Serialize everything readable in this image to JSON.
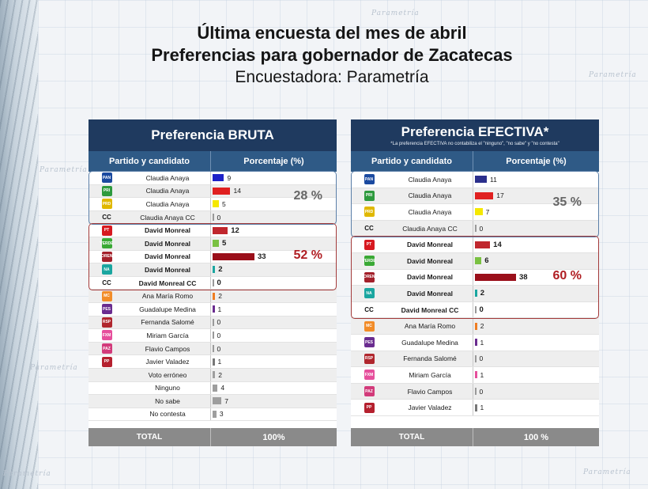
{
  "title_line1": "Última encuesta del mes de abril",
  "title_line2": "Preferencias para gobernador de Zacatecas",
  "title_line3": "Encuestadora: Parametría",
  "watermark": "Parametría",
  "colors": {
    "header_dark": "#1f3a5f",
    "header_mid": "#2f5a86",
    "group1_border": "#5b7fa8",
    "group2_border": "#a33a3a",
    "group1_pct": "#666666",
    "group2_pct": "#b01e23"
  },
  "chart_data": [
    {
      "type": "bar",
      "title": "Preferencia BRUTA",
      "note": "",
      "col_headers": [
        "Partido y candidato",
        "Porcentaje (%)"
      ],
      "total_label": "TOTAL",
      "total_value": "100%",
      "groups": [
        {
          "label": "28 %",
          "start": 0,
          "end": 3
        },
        {
          "label": "52 %",
          "start": 4,
          "end": 8
        }
      ],
      "rows": [
        {
          "party": "PAN",
          "icon": "pan-logo-icon",
          "logo_color": "#1b4aa0",
          "name": "Claudia Anaya",
          "value": 9,
          "color": "#1e22c8",
          "bold": false
        },
        {
          "party": "PRI",
          "icon": "pri-logo-icon",
          "logo_color": "#2e9a3e",
          "name": "Claudia Anaya",
          "value": 14,
          "color": "#e02020",
          "bold": false
        },
        {
          "party": "PRD",
          "icon": "prd-logo-icon",
          "logo_color": "#e0b800",
          "name": "Claudia Anaya",
          "value": 5,
          "color": "#f5e800",
          "bold": false
        },
        {
          "party": "CC",
          "icon": "",
          "logo_color": "",
          "name": "Claudia Anaya CC",
          "value": 0,
          "color": "#999999",
          "bold": false
        },
        {
          "party": "PT",
          "icon": "pt-logo-icon",
          "logo_color": "#d71920",
          "name": "David Monreal",
          "value": 12,
          "color": "#c0262d",
          "bold": true
        },
        {
          "party": "VERDE",
          "icon": "verde-logo-icon",
          "logo_color": "#3aa935",
          "name": "David Monreal",
          "value": 5,
          "color": "#7ac142",
          "bold": true
        },
        {
          "party": "MORENA",
          "icon": "morena-logo-icon",
          "logo_color": "#a3202a",
          "name": "David Monreal",
          "value": 33,
          "color": "#9a0f1a",
          "bold": true
        },
        {
          "party": "NA",
          "icon": "nueva-alianza-logo-icon",
          "logo_color": "#1aa6a0",
          "name": "David Monreal",
          "value": 2,
          "color": "#1aa6a0",
          "bold": true
        },
        {
          "party": "CC",
          "icon": "",
          "logo_color": "",
          "name": "David Monreal CC",
          "value": 0,
          "color": "#999999",
          "bold": true
        },
        {
          "party": "MC",
          "icon": "mc-logo-icon",
          "logo_color": "#f28c28",
          "name": "Ana María Romo",
          "value": 2,
          "color": "#ef7d22",
          "bold": false
        },
        {
          "party": "PES",
          "icon": "pes-logo-icon",
          "logo_color": "#6a2c8f",
          "name": "Guadalupe Medina",
          "value": 1,
          "color": "#6a2c8f",
          "bold": false
        },
        {
          "party": "RSP",
          "icon": "rsp-logo-icon",
          "logo_color": "#b0262d",
          "name": "Fernanda Salomé",
          "value": 0,
          "color": "#999999",
          "bold": false
        },
        {
          "party": "FXM",
          "icon": "fxm-logo-icon",
          "logo_color": "#e64f9c",
          "name": "Miriam García",
          "value": 0,
          "color": "#999999",
          "bold": false
        },
        {
          "party": "PAZ",
          "icon": "paz-logo-icon",
          "logo_color": "#d23a7a",
          "name": "Flavio Campos",
          "value": 0,
          "color": "#999999",
          "bold": false
        },
        {
          "party": "PP",
          "icon": "pp-logo-icon",
          "logo_color": "#b5202e",
          "name": "Javier Valadez",
          "value": 1,
          "color": "#777777",
          "bold": false
        },
        {
          "party": "",
          "icon": "",
          "logo_color": "",
          "name": "Voto erróneo",
          "value": 2,
          "color": "#9e9e9e",
          "bold": false
        },
        {
          "party": "",
          "icon": "",
          "logo_color": "",
          "name": "Ninguno",
          "value": 4,
          "color": "#9e9e9e",
          "bold": false
        },
        {
          "party": "",
          "icon": "",
          "logo_color": "",
          "name": "No sabe",
          "value": 7,
          "color": "#9e9e9e",
          "bold": false
        },
        {
          "party": "",
          "icon": "",
          "logo_color": "",
          "name": "No contesta",
          "value": 3,
          "color": "#9e9e9e",
          "bold": false
        }
      ]
    },
    {
      "type": "bar",
      "title": "Preferencia EFECTIVA*",
      "note": "*La preferencia EFECTIVA no contabiliza el \"ninguno\", \"no sabe\" y \"no contesta\"",
      "col_headers": [
        "Partido y candidato",
        "Porcentaje (%)"
      ],
      "total_label": "TOTAL",
      "total_value": "100 %",
      "groups": [
        {
          "label": "35 %",
          "start": 0,
          "end": 3
        },
        {
          "label": "60 %",
          "start": 4,
          "end": 8
        }
      ],
      "rows": [
        {
          "party": "PAN",
          "icon": "pan-logo-icon",
          "logo_color": "#1b4aa0",
          "name": "Claudia Anaya",
          "value": 11,
          "color": "#2b2f8c",
          "bold": false
        },
        {
          "party": "PRI",
          "icon": "pri-logo-icon",
          "logo_color": "#2e9a3e",
          "name": "Claudia Anaya",
          "value": 17,
          "color": "#e02020",
          "bold": false
        },
        {
          "party": "PRD",
          "icon": "prd-logo-icon",
          "logo_color": "#e0b800",
          "name": "Claudia Anaya",
          "value": 7,
          "color": "#f5e800",
          "bold": false
        },
        {
          "party": "CC",
          "icon": "",
          "logo_color": "",
          "name": "Claudia Anaya CC",
          "value": 0,
          "color": "#999999",
          "bold": false
        },
        {
          "party": "PT",
          "icon": "pt-logo-icon",
          "logo_color": "#d71920",
          "name": "David Monreal",
          "value": 14,
          "color": "#c0262d",
          "bold": true
        },
        {
          "party": "VERDE",
          "icon": "verde-logo-icon",
          "logo_color": "#3aa935",
          "name": "David Monreal",
          "value": 6,
          "color": "#7ac142",
          "bold": true
        },
        {
          "party": "MORENA",
          "icon": "morena-logo-icon",
          "logo_color": "#a3202a",
          "name": "David Monreal",
          "value": 38,
          "color": "#9a0f1a",
          "bold": true
        },
        {
          "party": "NA",
          "icon": "nueva-alianza-logo-icon",
          "logo_color": "#1aa6a0",
          "name": "David Monreal",
          "value": 2,
          "color": "#1aa6a0",
          "bold": true
        },
        {
          "party": "CC",
          "icon": "",
          "logo_color": "",
          "name": "David Monreal CC",
          "value": 0,
          "color": "#999999",
          "bold": true
        },
        {
          "party": "MC",
          "icon": "mc-logo-icon",
          "logo_color": "#f28c28",
          "name": "Ana María Romo",
          "value": 2,
          "color": "#ef7d22",
          "bold": false
        },
        {
          "party": "PES",
          "icon": "pes-logo-icon",
          "logo_color": "#6a2c8f",
          "name": "Guadalupe Medina",
          "value": 1,
          "color": "#6a2c8f",
          "bold": false
        },
        {
          "party": "RSP",
          "icon": "rsp-logo-icon",
          "logo_color": "#b0262d",
          "name": "Fernanda Salomé",
          "value": 0,
          "color": "#999999",
          "bold": false
        },
        {
          "party": "FXM",
          "icon": "fxm-logo-icon",
          "logo_color": "#e64f9c",
          "name": "Miriam García",
          "value": 1,
          "color": "#e64f9c",
          "bold": false
        },
        {
          "party": "PAZ",
          "icon": "paz-logo-icon",
          "logo_color": "#d23a7a",
          "name": "Flavio Campos",
          "value": 0,
          "color": "#999999",
          "bold": false
        },
        {
          "party": "PP",
          "icon": "pp-logo-icon",
          "logo_color": "#b5202e",
          "name": "Javier Valadez",
          "value": 1,
          "color": "#777777",
          "bold": false
        }
      ]
    }
  ]
}
